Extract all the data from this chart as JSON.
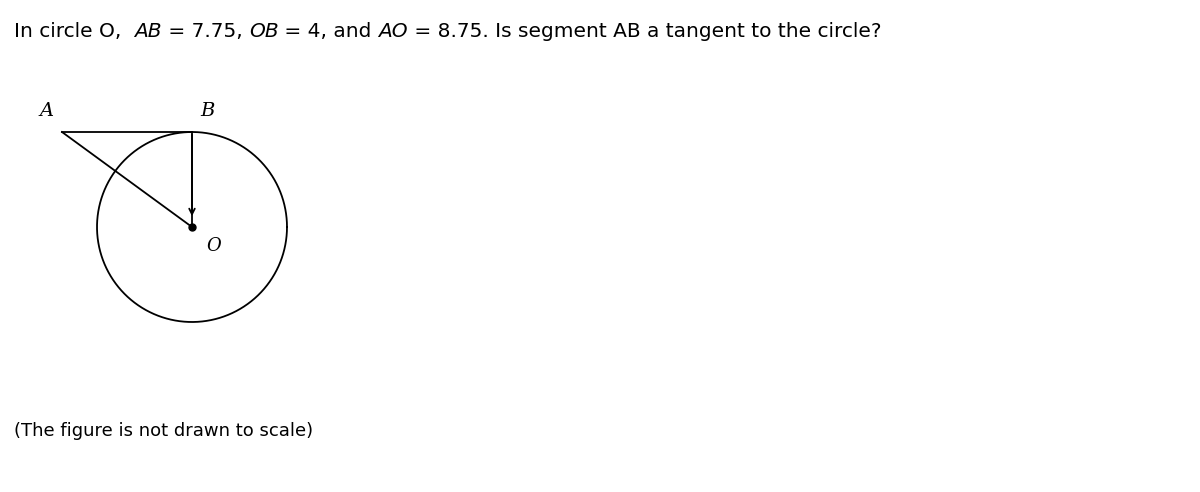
{
  "title_parts": [
    {
      "text": "In circle O,  ",
      "style": "normal"
    },
    {
      "text": "AB",
      "style": "italic"
    },
    {
      "text": " = 7.75, ",
      "style": "normal"
    },
    {
      "text": "OB",
      "style": "italic"
    },
    {
      "text": " = 4, and ",
      "style": "normal"
    },
    {
      "text": "AO",
      "style": "italic"
    },
    {
      "text": " = 8.75. Is segment AB a tangent to the circle?",
      "style": "normal"
    }
  ],
  "subtitle_text": "(The figure is not drawn to scale)",
  "title_fontsize": 14.5,
  "subtitle_fontsize": 13,
  "bg_color": "#ffffff",
  "label_A": "A",
  "label_B": "B",
  "label_O": "O",
  "line_color": "#000000",
  "circle_color": "#000000",
  "text_color": "#000000",
  "fig_width": 12.0,
  "fig_height": 4.92,
  "dpi": 100
}
